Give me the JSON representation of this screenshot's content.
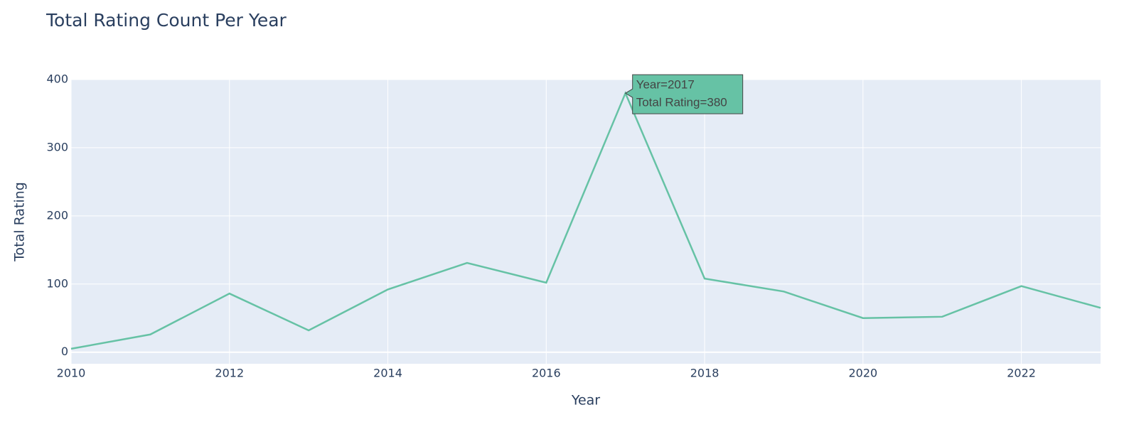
{
  "chart_data": {
    "type": "line",
    "title": "Total Rating Count Per Year",
    "x_label": "Year",
    "y_label": "Total Rating",
    "x": [
      2010,
      2011,
      2012,
      2013,
      2014,
      2015,
      2016,
      2017,
      2018,
      2019,
      2020,
      2021,
      2022,
      2023
    ],
    "values": [
      5,
      26,
      86,
      32,
      92,
      131,
      102,
      380,
      108,
      89,
      50,
      52,
      97,
      65
    ],
    "color": "#66c2a5",
    "xlim": [
      2010,
      2023
    ],
    "xticks": [
      2010,
      2012,
      2014,
      2016,
      2018,
      2020,
      2022
    ],
    "ylim": [
      -17,
      400
    ],
    "yticks": [
      0,
      100,
      200,
      300,
      400
    ],
    "grid": true,
    "tooltip": {
      "x": 2017,
      "lines": [
        "Year=2017",
        "Total Rating=380"
      ]
    }
  }
}
